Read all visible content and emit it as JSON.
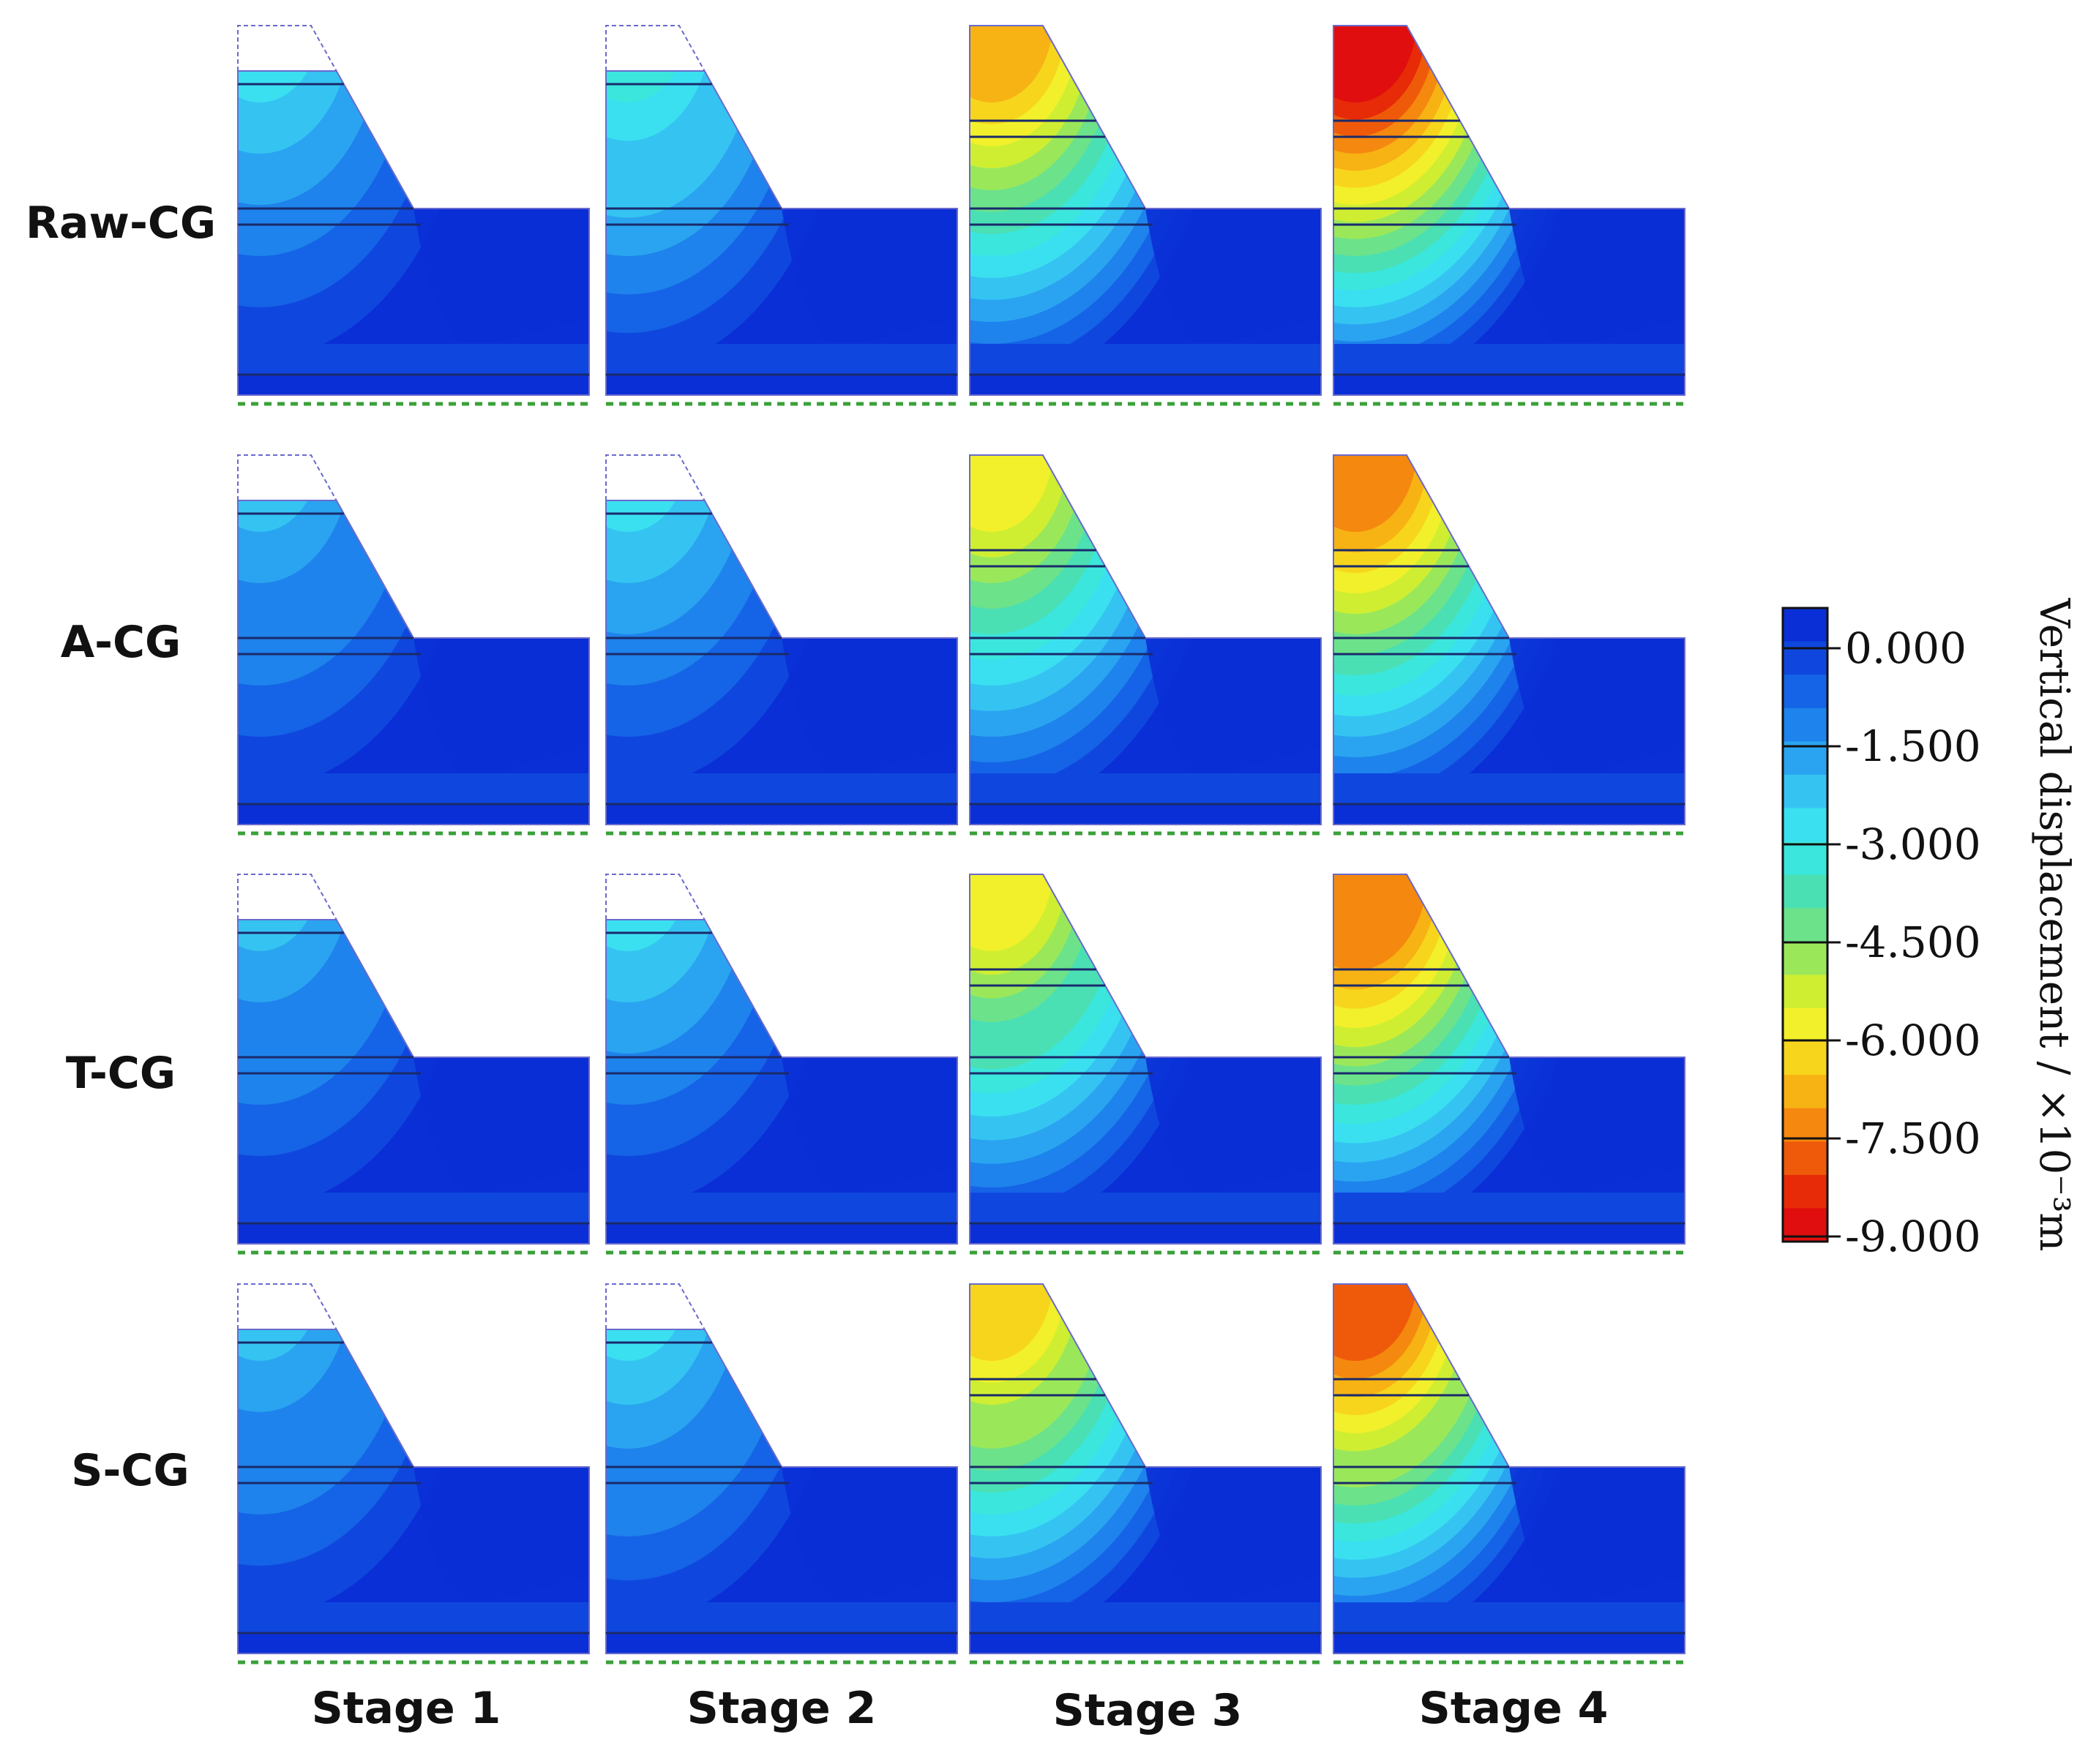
{
  "figure": {
    "rows": [
      "Raw-CG",
      "A-CG",
      "T-CG",
      "S-CG"
    ],
    "columns": [
      "Stage 1",
      "Stage 2",
      "Stage 3",
      "Stage 4"
    ],
    "max_displacement_index": [
      [
        0.32,
        0.4,
        0.75,
        1.0
      ],
      [
        0.28,
        0.33,
        0.66,
        0.83
      ],
      [
        0.28,
        0.32,
        0.68,
        0.86
      ],
      [
        0.28,
        0.34,
        0.74,
        0.9
      ]
    ]
  },
  "colorbar": {
    "title": "Vertical displacement / ×10⁻³m",
    "ticks": [
      "0.000",
      "-1.500",
      "-3.000",
      "-4.500",
      "-6.000",
      "-7.500",
      "-9.000"
    ],
    "colors": [
      "#0a2fd6",
      "#0f47de",
      "#1563e6",
      "#1e83ec",
      "#2aa4f0",
      "#35c4f2",
      "#3ae0f0",
      "#3be6dc",
      "#4ae0b4",
      "#6ce28a",
      "#9ae85a",
      "#cfee32",
      "#f2f02a",
      "#f7d51d",
      "#f7b214",
      "#f5880e",
      "#ef5a0a",
      "#e72a08",
      "#e00e0e"
    ]
  },
  "colors": {
    "accent_dashed": "#3aa03a",
    "layer_line": "#1a2a6a",
    "slope_outline": "#6a6acc"
  }
}
